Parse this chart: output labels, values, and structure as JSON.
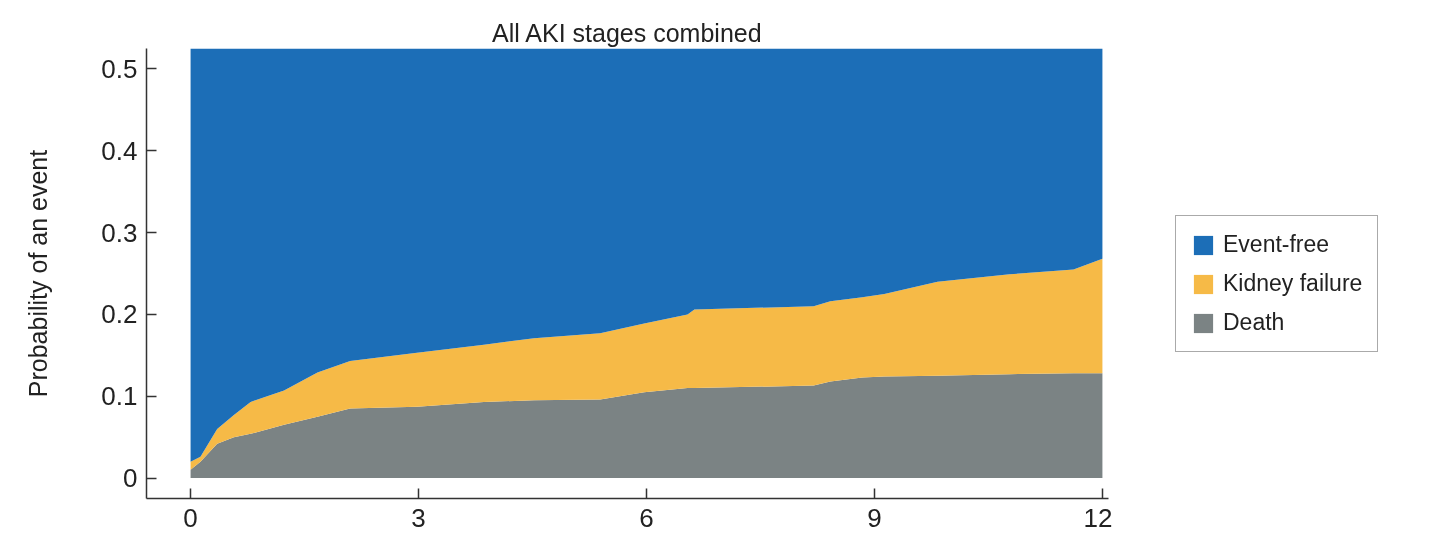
{
  "chart_data": {
    "type": "area",
    "title": "All AKI stages combined",
    "ylabel": "Probability of an event",
    "stacked": true,
    "x": [
      0,
      0.13,
      0.35,
      0.57,
      0.79,
      1.23,
      1.67,
      2.1,
      2.98,
      3.86,
      4.52,
      5.39,
      5.97,
      6.54,
      6.63,
      8.2,
      8.42,
      8.84,
      9.13,
      9.83,
      10.78,
      11.62,
      12
    ],
    "series": [
      {
        "name": "Death",
        "color": "#7b8384",
        "values": [
          0.01,
          0.02,
          0.042,
          0.05,
          0.054,
          0.065,
          0.075,
          0.085,
          0.087,
          0.093,
          0.095,
          0.096,
          0.105,
          0.11,
          0.11,
          0.113,
          0.118,
          0.123,
          0.124,
          0.125,
          0.127,
          0.128,
          0.128
        ]
      },
      {
        "name": "Kidney failure",
        "color": "#f6ba47",
        "values": [
          0.01,
          0.006,
          0.018,
          0.027,
          0.039,
          0.042,
          0.054,
          0.058,
          0.066,
          0.07,
          0.076,
          0.081,
          0.084,
          0.09,
          0.096,
          0.097,
          0.098,
          0.098,
          0.101,
          0.115,
          0.122,
          0.127,
          0.14
        ]
      },
      {
        "name": "Event-free",
        "color": "#1c6eb7",
        "values": [
          0.505,
          0.499,
          0.465,
          0.448,
          0.432,
          0.418,
          0.396,
          0.382,
          0.372,
          0.362,
          0.354,
          0.348,
          0.336,
          0.325,
          0.319,
          0.315,
          0.309,
          0.304,
          0.3,
          0.285,
          0.276,
          0.27,
          0.257
        ]
      }
    ],
    "xlim": [
      -0.58,
      12.08
    ],
    "ylim": [
      -0.025,
      0.525
    ],
    "xticks": [
      0,
      3,
      6,
      9,
      12
    ],
    "yticks": [
      0,
      0.1,
      0.2,
      0.3,
      0.4,
      0.5
    ],
    "grid": false,
    "legend": "right"
  }
}
